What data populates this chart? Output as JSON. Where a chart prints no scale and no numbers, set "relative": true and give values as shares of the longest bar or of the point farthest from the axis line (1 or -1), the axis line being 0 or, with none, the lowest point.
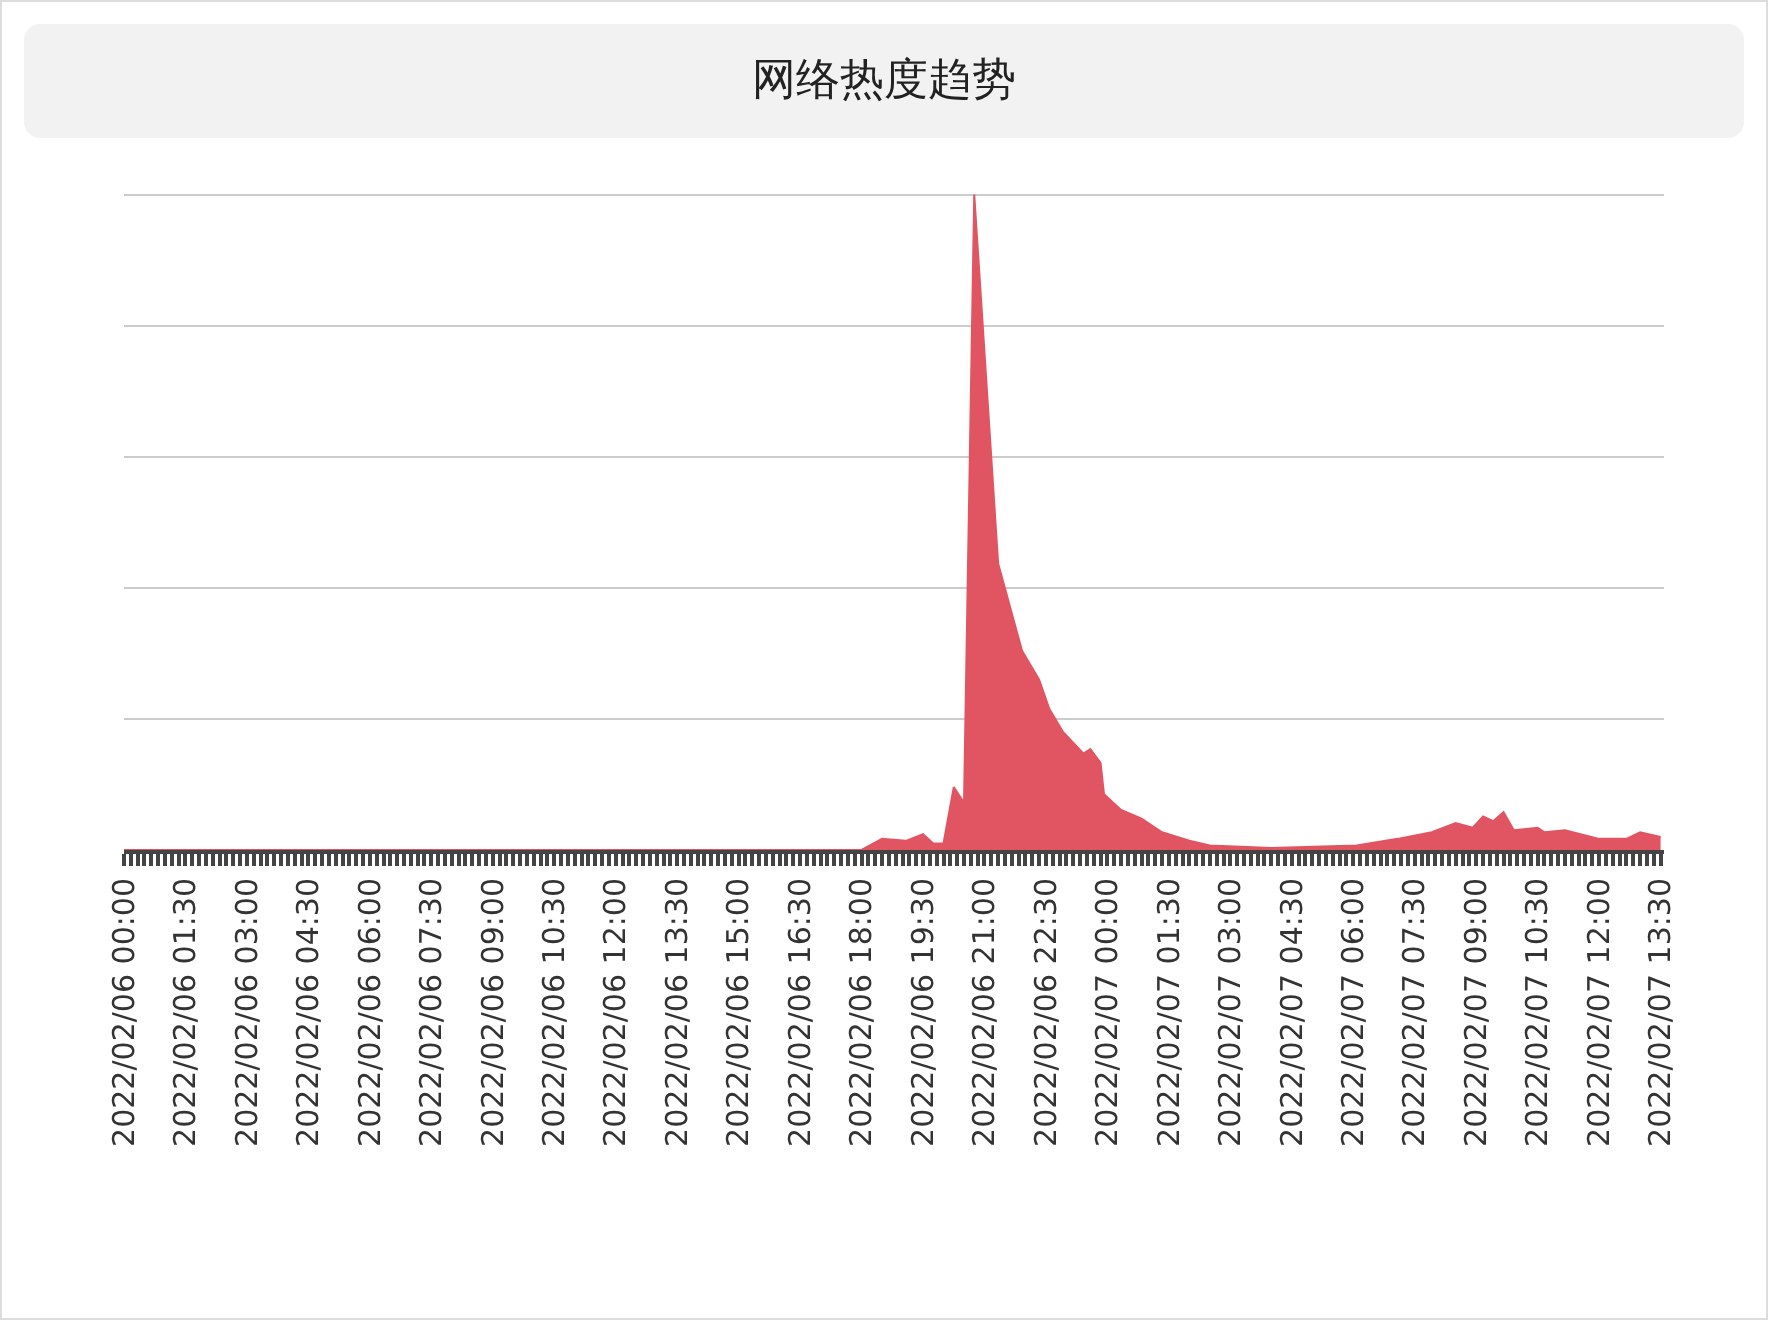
{
  "chart_data": {
    "type": "area",
    "title": "网络热度趋势",
    "relative": true,
    "grid": "y",
    "xlim": [
      "2022-02-06T00:00",
      "2022-02-07T13:35"
    ],
    "xticks": [
      {
        "value": "2022-02-06T00:00",
        "label": "2022/02/06 00:00"
      },
      {
        "value": "2022-02-06T01:30",
        "label": "2022/02/06 01:30"
      },
      {
        "value": "2022-02-06T03:00",
        "label": "2022/02/06 03:00"
      },
      {
        "value": "2022-02-06T04:30",
        "label": "2022/02/06 04:30"
      },
      {
        "value": "2022-02-06T06:00",
        "label": "2022/02/06 06:00"
      },
      {
        "value": "2022-02-06T07:30",
        "label": "2022/02/06 07:30"
      },
      {
        "value": "2022-02-06T09:00",
        "label": "2022/02/06 09:00"
      },
      {
        "value": "2022-02-06T10:30",
        "label": "2022/02/06 10:30"
      },
      {
        "value": "2022-02-06T12:00",
        "label": "2022/02/06 12:00"
      },
      {
        "value": "2022-02-06T13:30",
        "label": "2022/02/06 13:30"
      },
      {
        "value": "2022-02-06T15:00",
        "label": "2022/02/06 15:00"
      },
      {
        "value": "2022-02-06T16:30",
        "label": "2022/02/06 16:30"
      },
      {
        "value": "2022-02-06T18:00",
        "label": "2022/02/06 18:00"
      },
      {
        "value": "2022-02-06T19:30",
        "label": "2022/02/06 19:30"
      },
      {
        "value": "2022-02-06T21:00",
        "label": "2022/02/06 21:00"
      },
      {
        "value": "2022-02-06T22:30",
        "label": "2022/02/06 22:30"
      },
      {
        "value": "2022-02-07T00:00",
        "label": "2022/02/07 00:00"
      },
      {
        "value": "2022-02-07T01:30",
        "label": "2022/02/07 01:30"
      },
      {
        "value": "2022-02-07T03:00",
        "label": "2022/02/07 03:00"
      },
      {
        "value": "2022-02-07T04:30",
        "label": "2022/02/07 04:30"
      },
      {
        "value": "2022-02-07T06:00",
        "label": "2022/02/07 06:00"
      },
      {
        "value": "2022-02-07T07:30",
        "label": "2022/02/07 07:30"
      },
      {
        "value": "2022-02-07T09:00",
        "label": "2022/02/07 09:00"
      },
      {
        "value": "2022-02-07T10:30",
        "label": "2022/02/07 10:30"
      },
      {
        "value": "2022-02-07T12:00",
        "label": "2022/02/07 12:00"
      },
      {
        "value": "2022-02-07T13:30",
        "label": "2022/02/07 13:30"
      }
    ],
    "x": [
      "2022-02-06T00:00",
      "2022-02-06T18:00",
      "2022-02-06T18:30",
      "2022-02-06T19:05",
      "2022-02-06T19:30",
      "2022-02-06T19:45",
      "2022-02-06T20:00",
      "2022-02-06T20:15",
      "2022-02-06T20:30",
      "2022-02-06T20:45",
      "2022-02-06T21:20",
      "2022-02-06T21:55",
      "2022-02-06T22:20",
      "2022-02-06T22:35",
      "2022-02-06T22:55",
      "2022-02-06T23:25",
      "2022-02-06T23:35",
      "2022-02-06T23:50",
      "2022-02-06T23:55",
      "2022-02-07T00:20",
      "2022-02-07T00:50",
      "2022-02-07T01:20",
      "2022-02-07T02:00",
      "2022-02-07T02:30",
      "2022-02-07T04:00",
      "2022-02-07T06:05",
      "2022-02-07T07:05",
      "2022-02-07T07:55",
      "2022-02-07T08:30",
      "2022-02-07T08:55",
      "2022-02-07T09:10",
      "2022-02-07T09:25",
      "2022-02-07T09:40",
      "2022-02-07T09:55",
      "2022-02-07T10:30",
      "2022-02-07T10:40",
      "2022-02-07T11:10",
      "2022-02-07T12:00",
      "2022-02-07T12:40",
      "2022-02-07T13:00",
      "2022-02-07T13:30"
    ],
    "series": [
      {
        "color": "#e05561",
        "values": [
          0,
          0,
          0.017,
          0.014,
          0.024,
          0.01,
          0.01,
          0.096,
          0.072,
          1,
          0.437,
          0.304,
          0.26,
          0.215,
          0.18,
          0.147,
          0.154,
          0.133,
          0.085,
          0.061,
          0.048,
          0.027,
          0.014,
          0.007,
          0.003,
          0.007,
          0.017,
          0.027,
          0.041,
          0.034,
          0.051,
          0.044,
          0.058,
          0.03,
          0.034,
          0.027,
          0.03,
          0.017,
          0.017,
          0.027,
          0.02
        ]
      }
    ]
  }
}
